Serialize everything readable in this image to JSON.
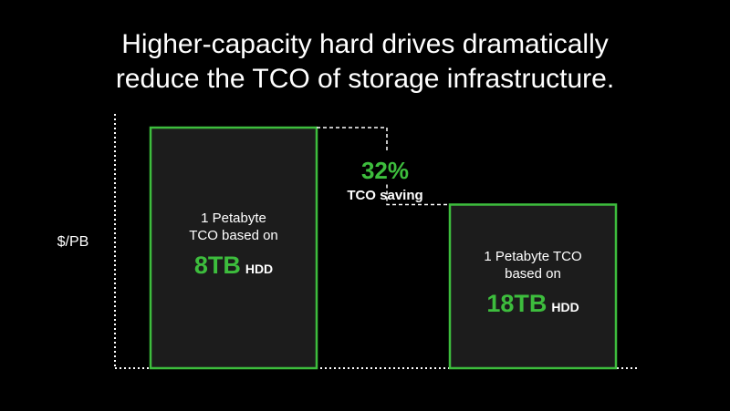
{
  "title": {
    "line1": "Higher-capacity hard drives dramatically",
    "line2": "reduce the TCO of storage infrastructure."
  },
  "colors": {
    "background": "#000000",
    "accent_green": "#3dbd3d",
    "bar_fill": "#1c1c1c",
    "axis": "#ffffff"
  },
  "chart_data": {
    "type": "bar",
    "ylabel": "$/PB",
    "ylim": [
      0,
      100
    ],
    "grid": false,
    "categories": [
      "8TB HDD",
      "18TB HDD"
    ],
    "values": [
      100,
      68
    ],
    "bars": [
      {
        "label_lines": [
          "1 Petabyte",
          "TCO based on"
        ],
        "capacity": "8TB",
        "unit": "HDD",
        "value": 100
      },
      {
        "label_lines": [
          "1 Petabyte TCO",
          "based on"
        ],
        "capacity": "18TB",
        "unit": "HDD",
        "value": 68
      }
    ],
    "annotation": {
      "percent": "32%",
      "text": "TCO saving"
    }
  }
}
